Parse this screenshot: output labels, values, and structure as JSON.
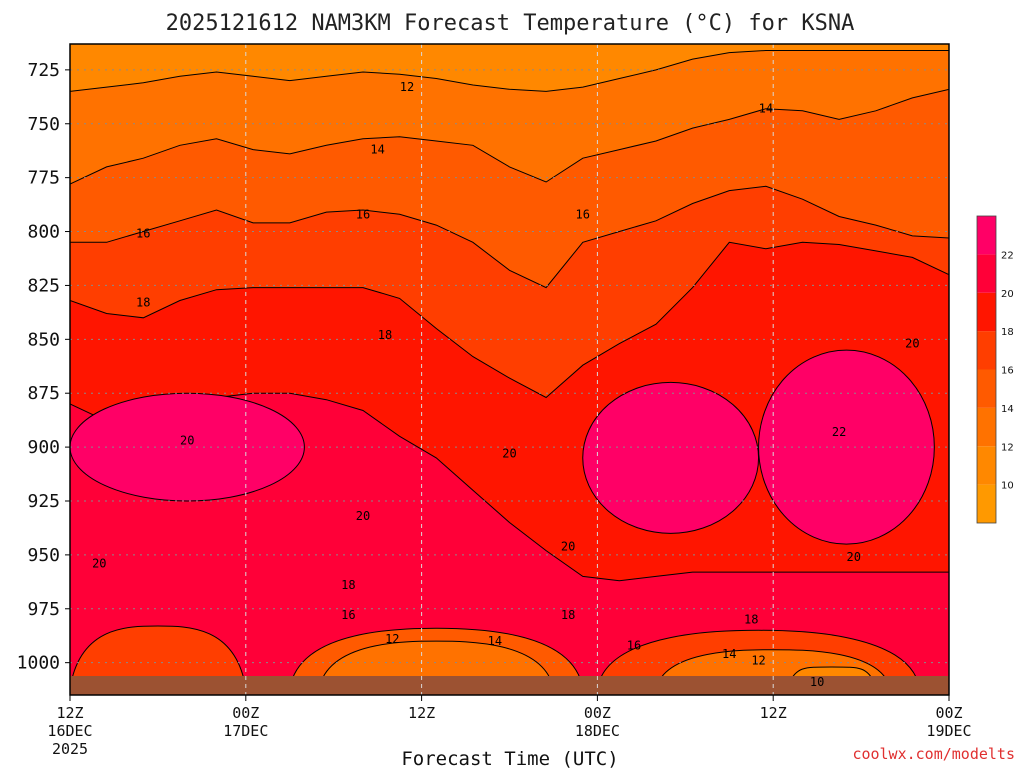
{
  "title": "2025121612 NAM3KM Forecast Temperature (°C) for KSNA",
  "credit": "coolwx.com/modelts",
  "colors": {
    "background": "#ffffff",
    "terrain": "#9c5232",
    "contour_line": "#000000",
    "grid": "#8a8a8a"
  },
  "chart_data": {
    "type": "heatmap",
    "title": "2025121612 NAM3KM Forecast Temperature (°C) for KSNA",
    "xlabel": "Forecast Time (UTC)",
    "ylabel": "",
    "y_axis": {
      "scale": "pressure (hPa), increasing downward",
      "ticks": [
        725,
        750,
        775,
        800,
        825,
        850,
        875,
        900,
        925,
        950,
        975,
        1000
      ],
      "range": [
        1015,
        713
      ]
    },
    "x_axis": {
      "range_hours": [
        0,
        60
      ],
      "ticks": [
        {
          "hour": 0,
          "label": "12Z",
          "sub": "16DEC",
          "year": "2025"
        },
        {
          "hour": 12,
          "label": "00Z",
          "sub": "17DEC",
          "year": ""
        },
        {
          "hour": 24,
          "label": "12Z",
          "sub": "",
          "year": ""
        },
        {
          "hour": 36,
          "label": "00Z",
          "sub": "18DEC",
          "year": ""
        },
        {
          "hour": 48,
          "label": "12Z",
          "sub": "",
          "year": ""
        },
        {
          "hour": 60,
          "label": "00Z",
          "sub": "19DEC",
          "year": ""
        }
      ]
    },
    "grid": true,
    "colorbar": {
      "placement": "right",
      "ticks": [
        10,
        12,
        14,
        16,
        18,
        20,
        22
      ],
      "bins": [
        {
          "min": 8,
          "max": 10,
          "color": "#ff9900"
        },
        {
          "min": 10,
          "max": 12,
          "color": "#ff8800"
        },
        {
          "min": 12,
          "max": 14,
          "color": "#ff7200"
        },
        {
          "min": 14,
          "max": 16,
          "color": "#ff5a00"
        },
        {
          "min": 16,
          "max": 18,
          "color": "#ff3e00"
        },
        {
          "min": 18,
          "max": 20,
          "color": "#ff1500"
        },
        {
          "min": 20,
          "max": 22,
          "color": "#ff0038"
        },
        {
          "min": 22,
          "max": 24,
          "color": "#ff0066"
        }
      ]
    },
    "contour_labels": [
      {
        "value": 12,
        "hour": 23,
        "pressure": 733
      },
      {
        "value": 14,
        "hour": 21,
        "pressure": 762
      },
      {
        "value": 14,
        "hour": 47.5,
        "pressure": 743
      },
      {
        "value": 16,
        "hour": 5,
        "pressure": 801
      },
      {
        "value": 16,
        "hour": 20,
        "pressure": 792
      },
      {
        "value": 16,
        "hour": 35,
        "pressure": 792
      },
      {
        "value": 18,
        "hour": 5,
        "pressure": 833
      },
      {
        "value": 18,
        "hour": 21.5,
        "pressure": 848
      },
      {
        "value": 18,
        "hour": 19,
        "pressure": 964
      },
      {
        "value": 18,
        "hour": 34,
        "pressure": 978
      },
      {
        "value": 18,
        "hour": 46.5,
        "pressure": 980
      },
      {
        "value": 20,
        "hour": 8,
        "pressure": 897
      },
      {
        "value": 20,
        "hour": 2,
        "pressure": 954
      },
      {
        "value": 20,
        "hour": 20,
        "pressure": 932
      },
      {
        "value": 20,
        "hour": 30,
        "pressure": 903
      },
      {
        "value": 20,
        "hour": 34,
        "pressure": 946
      },
      {
        "value": 20,
        "hour": 57.5,
        "pressure": 852
      },
      {
        "value": 20,
        "hour": 53.5,
        "pressure": 951
      },
      {
        "value": 22,
        "hour": 52.5,
        "pressure": 893
      },
      {
        "value": 16,
        "hour": 19,
        "pressure": 978
      },
      {
        "value": 16,
        "hour": 38.5,
        "pressure": 992
      },
      {
        "value": 14,
        "hour": 29,
        "pressure": 990
      },
      {
        "value": 14,
        "hour": 45,
        "pressure": 996
      },
      {
        "value": 12,
        "hour": 22,
        "pressure": 989
      },
      {
        "value": 12,
        "hour": 47,
        "pressure": 999
      },
      {
        "value": 10,
        "hour": 51,
        "pressure": 1009
      }
    ],
    "bands": [
      {
        "value": 12,
        "pressure": [
          735,
          733,
          731,
          728,
          726,
          728,
          730,
          728,
          726,
          727,
          729,
          732,
          734,
          735,
          733,
          729,
          725,
          720,
          717,
          716,
          716,
          716,
          716,
          716,
          716
        ]
      },
      {
        "value": 14,
        "pressure": [
          778,
          770,
          766,
          760,
          757,
          762,
          764,
          760,
          757,
          756,
          758,
          760,
          770,
          777,
          766,
          762,
          758,
          752,
          748,
          743,
          744,
          748,
          744,
          738,
          734
        ]
      },
      {
        "value": 16,
        "pressure": [
          805,
          805,
          800,
          795,
          790,
          796,
          796,
          791,
          790,
          792,
          797,
          805,
          818,
          826,
          805,
          800,
          795,
          787,
          781,
          779,
          785,
          793,
          797,
          802,
          803
        ]
      },
      {
        "value": 18,
        "pressure": [
          832,
          838,
          840,
          832,
          827,
          826,
          826,
          826,
          826,
          831,
          845,
          858,
          868,
          877,
          862,
          852,
          843,
          826,
          805,
          808,
          805,
          806,
          809,
          812,
          820
        ]
      },
      {
        "value": 20,
        "pressure": [
          880,
          888,
          895,
          893,
          877,
          875,
          875,
          878,
          883,
          895,
          905,
          920,
          935,
          948,
          960,
          962,
          960,
          958,
          958,
          958,
          958,
          958,
          958,
          958,
          958
        ]
      },
      {
        "value": 22,
        "pressure": [
          1015,
          1015,
          1015,
          1015,
          1015,
          1015,
          1015,
          1015,
          1015,
          1015,
          1015,
          1015,
          1015,
          1015,
          1015,
          1015,
          1015,
          1015,
          1015,
          1015,
          1015,
          1015,
          1015,
          1015,
          1015
        ]
      }
    ],
    "surface_pools": [
      {
        "value": 16,
        "center_hour": 6,
        "pressure_top": 983,
        "pressure_bottom": 1012,
        "half_width_hours": 6
      },
      {
        "value": 14,
        "center_hour": 25,
        "pressure_top": 984,
        "pressure_bottom": 1012,
        "half_width_hours": 10
      },
      {
        "value": 12,
        "center_hour": 25,
        "pressure_top": 990,
        "pressure_bottom": 1012,
        "half_width_hours": 8
      },
      {
        "value": 16,
        "center_hour": 47,
        "pressure_top": 985,
        "pressure_bottom": 1012,
        "half_width_hours": 11
      },
      {
        "value": 12,
        "center_hour": 48,
        "pressure_top": 994,
        "pressure_bottom": 1012,
        "half_width_hours": 8
      },
      {
        "value": 10,
        "center_hour": 52,
        "pressure_top": 1002,
        "pressure_bottom": 1010,
        "half_width_hours": 3
      }
    ],
    "warm_cores": [
      {
        "value": 22,
        "center_hour": 8,
        "center_pressure": 900,
        "hour_radius": 8,
        "pressure_radius": 25
      },
      {
        "value": 22,
        "center_hour": 41,
        "center_pressure": 905,
        "hour_radius": 6,
        "pressure_radius": 35
      },
      {
        "value": 22,
        "center_hour": 53,
        "center_pressure": 900,
        "hour_radius": 6,
        "pressure_radius": 45
      }
    ]
  }
}
